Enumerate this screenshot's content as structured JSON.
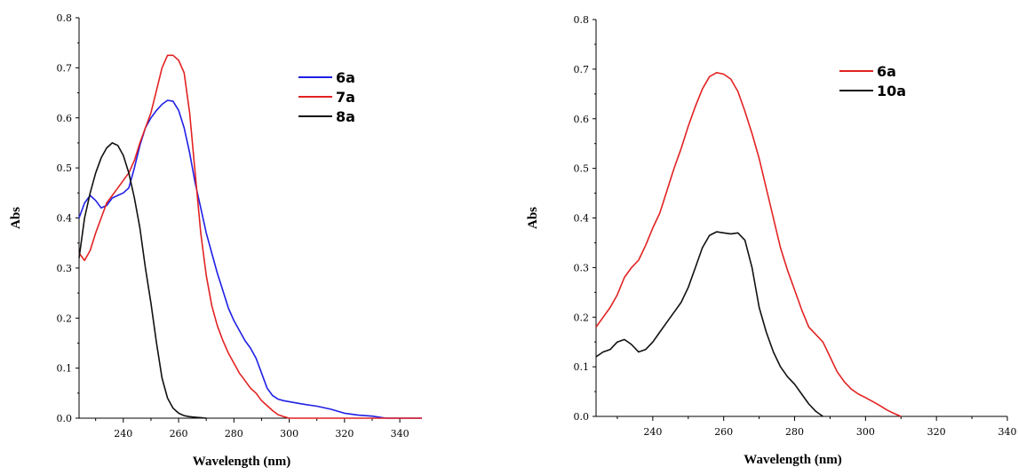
{
  "chart_data": [
    {
      "type": "line",
      "title": "",
      "xlabel": "Wavelength (nm)",
      "ylabel": "Abs",
      "xlim": [
        224,
        348
      ],
      "ylim": [
        0,
        0.8
      ],
      "xticks": [
        240,
        260,
        280,
        300,
        320,
        340
      ],
      "yticks": [
        0.0,
        0.1,
        0.2,
        0.3,
        0.4,
        0.5,
        0.6,
        0.7,
        0.8
      ],
      "grid": false,
      "legend_position": "top-right",
      "series": [
        {
          "name": "6a",
          "color": "#1f1fe6",
          "points": [
            [
              224,
              0.4
            ],
            [
              226,
              0.43
            ],
            [
              228,
              0.445
            ],
            [
              230,
              0.435
            ],
            [
              232,
              0.42
            ],
            [
              234,
              0.425
            ],
            [
              236,
              0.44
            ],
            [
              238,
              0.445
            ],
            [
              240,
              0.45
            ],
            [
              242,
              0.46
            ],
            [
              244,
              0.5
            ],
            [
              246,
              0.545
            ],
            [
              248,
              0.58
            ],
            [
              250,
              0.6
            ],
            [
              252,
              0.615
            ],
            [
              254,
              0.627
            ],
            [
              256,
              0.635
            ],
            [
              258,
              0.633
            ],
            [
              260,
              0.615
            ],
            [
              262,
              0.58
            ],
            [
              264,
              0.53
            ],
            [
              266,
              0.47
            ],
            [
              268,
              0.42
            ],
            [
              270,
              0.37
            ],
            [
              272,
              0.33
            ],
            [
              274,
              0.29
            ],
            [
              276,
              0.255
            ],
            [
              278,
              0.22
            ],
            [
              280,
              0.195
            ],
            [
              282,
              0.175
            ],
            [
              284,
              0.155
            ],
            [
              286,
              0.14
            ],
            [
              288,
              0.12
            ],
            [
              290,
              0.09
            ],
            [
              292,
              0.06
            ],
            [
              294,
              0.045
            ],
            [
              296,
              0.038
            ],
            [
              298,
              0.035
            ],
            [
              300,
              0.033
            ],
            [
              305,
              0.028
            ],
            [
              310,
              0.024
            ],
            [
              315,
              0.018
            ],
            [
              320,
              0.01
            ],
            [
              325,
              0.006
            ],
            [
              330,
              0.004
            ],
            [
              335,
              0.0
            ],
            [
              348,
              0.0
            ]
          ]
        },
        {
          "name": "7a",
          "color": "#e32222",
          "points": [
            [
              224,
              0.33
            ],
            [
              226,
              0.315
            ],
            [
              228,
              0.335
            ],
            [
              230,
              0.37
            ],
            [
              232,
              0.4
            ],
            [
              234,
              0.43
            ],
            [
              236,
              0.445
            ],
            [
              238,
              0.46
            ],
            [
              240,
              0.475
            ],
            [
              242,
              0.49
            ],
            [
              244,
              0.515
            ],
            [
              246,
              0.55
            ],
            [
              248,
              0.58
            ],
            [
              250,
              0.61
            ],
            [
              252,
              0.655
            ],
            [
              254,
              0.7
            ],
            [
              256,
              0.725
            ],
            [
              258,
              0.725
            ],
            [
              260,
              0.715
            ],
            [
              262,
              0.69
            ],
            [
              264,
              0.61
            ],
            [
              266,
              0.49
            ],
            [
              268,
              0.37
            ],
            [
              270,
              0.285
            ],
            [
              272,
              0.225
            ],
            [
              274,
              0.185
            ],
            [
              276,
              0.155
            ],
            [
              278,
              0.13
            ],
            [
              280,
              0.11
            ],
            [
              282,
              0.09
            ],
            [
              284,
              0.075
            ],
            [
              286,
              0.06
            ],
            [
              288,
              0.05
            ],
            [
              290,
              0.035
            ],
            [
              292,
              0.025
            ],
            [
              294,
              0.015
            ],
            [
              296,
              0.007
            ],
            [
              298,
              0.003
            ],
            [
              300,
              0.0
            ],
            [
              348,
              0.0
            ]
          ]
        },
        {
          "name": "8a",
          "color": "#111111",
          "points": [
            [
              224,
              0.32
            ],
            [
              226,
              0.4
            ],
            [
              228,
              0.45
            ],
            [
              230,
              0.49
            ],
            [
              232,
              0.52
            ],
            [
              234,
              0.54
            ],
            [
              236,
              0.55
            ],
            [
              238,
              0.545
            ],
            [
              240,
              0.525
            ],
            [
              242,
              0.49
            ],
            [
              244,
              0.44
            ],
            [
              246,
              0.38
            ],
            [
              248,
              0.3
            ],
            [
              250,
              0.23
            ],
            [
              252,
              0.15
            ],
            [
              254,
              0.08
            ],
            [
              256,
              0.04
            ],
            [
              258,
              0.02
            ],
            [
              260,
              0.01
            ],
            [
              262,
              0.005
            ],
            [
              264,
              0.003
            ],
            [
              266,
              0.002
            ],
            [
              268,
              0.001
            ],
            [
              270,
              0.0
            ]
          ]
        }
      ]
    },
    {
      "type": "line",
      "title": "",
      "xlabel": "Wavelength (nm)",
      "ylabel": "Abs",
      "xlim": [
        224,
        340
      ],
      "ylim": [
        0,
        0.8
      ],
      "xticks": [
        240,
        260,
        280,
        300,
        320,
        340
      ],
      "yticks": [
        0.0,
        0.1,
        0.2,
        0.3,
        0.4,
        0.5,
        0.6,
        0.7,
        0.8
      ],
      "grid": false,
      "legend_position": "top-right",
      "series": [
        {
          "name": "6a",
          "color": "#e32222",
          "points": [
            [
              224,
              0.18
            ],
            [
              226,
              0.2
            ],
            [
              228,
              0.22
            ],
            [
              230,
              0.245
            ],
            [
              232,
              0.28
            ],
            [
              234,
              0.3
            ],
            [
              236,
              0.315
            ],
            [
              238,
              0.345
            ],
            [
              240,
              0.38
            ],
            [
              242,
              0.41
            ],
            [
              244,
              0.455
            ],
            [
              246,
              0.5
            ],
            [
              248,
              0.54
            ],
            [
              250,
              0.585
            ],
            [
              252,
              0.625
            ],
            [
              254,
              0.66
            ],
            [
              256,
              0.685
            ],
            [
              258,
              0.693
            ],
            [
              260,
              0.69
            ],
            [
              262,
              0.68
            ],
            [
              264,
              0.655
            ],
            [
              266,
              0.615
            ],
            [
              268,
              0.57
            ],
            [
              270,
              0.52
            ],
            [
              272,
              0.46
            ],
            [
              274,
              0.4
            ],
            [
              276,
              0.34
            ],
            [
              278,
              0.295
            ],
            [
              280,
              0.255
            ],
            [
              282,
              0.215
            ],
            [
              284,
              0.18
            ],
            [
              286,
              0.165
            ],
            [
              288,
              0.15
            ],
            [
              290,
              0.12
            ],
            [
              292,
              0.09
            ],
            [
              294,
              0.07
            ],
            [
              296,
              0.055
            ],
            [
              298,
              0.045
            ],
            [
              300,
              0.038
            ],
            [
              302,
              0.03
            ],
            [
              304,
              0.022
            ],
            [
              306,
              0.013
            ],
            [
              308,
              0.006
            ],
            [
              310,
              0.0
            ]
          ]
        },
        {
          "name": "10a",
          "color": "#111111",
          "points": [
            [
              224,
              0.12
            ],
            [
              226,
              0.13
            ],
            [
              228,
              0.135
            ],
            [
              230,
              0.15
            ],
            [
              232,
              0.155
            ],
            [
              234,
              0.145
            ],
            [
              236,
              0.13
            ],
            [
              238,
              0.135
            ],
            [
              240,
              0.15
            ],
            [
              242,
              0.17
            ],
            [
              244,
              0.19
            ],
            [
              246,
              0.21
            ],
            [
              248,
              0.23
            ],
            [
              250,
              0.26
            ],
            [
              252,
              0.3
            ],
            [
              254,
              0.34
            ],
            [
              256,
              0.365
            ],
            [
              258,
              0.372
            ],
            [
              260,
              0.37
            ],
            [
              262,
              0.368
            ],
            [
              264,
              0.37
            ],
            [
              266,
              0.355
            ],
            [
              268,
              0.3
            ],
            [
              270,
              0.22
            ],
            [
              272,
              0.17
            ],
            [
              274,
              0.13
            ],
            [
              276,
              0.1
            ],
            [
              278,
              0.08
            ],
            [
              280,
              0.065
            ],
            [
              282,
              0.045
            ],
            [
              284,
              0.025
            ],
            [
              286,
              0.01
            ],
            [
              288,
              0.0
            ]
          ]
        }
      ]
    }
  ]
}
